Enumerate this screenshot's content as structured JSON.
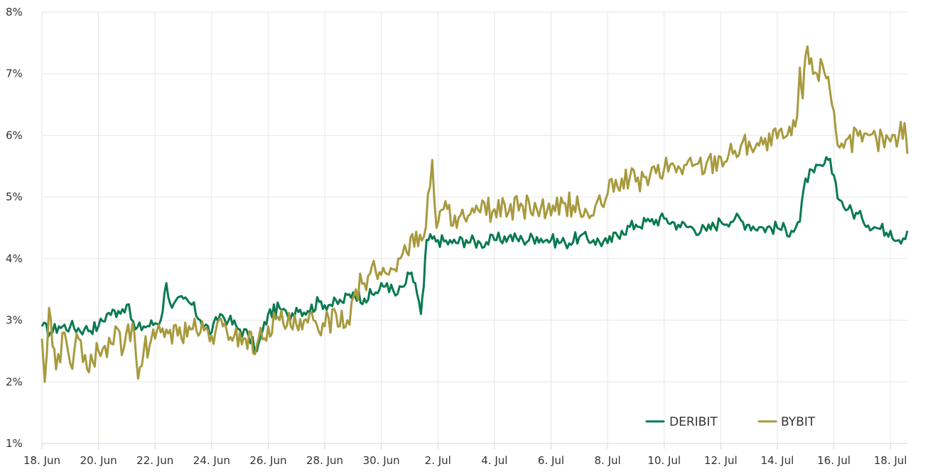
{
  "chart_data": {
    "type": "line",
    "title": "",
    "xlabel": "",
    "ylabel": "",
    "ylim": [
      1,
      8
    ],
    "xlim": [
      0,
      30.6
    ],
    "y_ticks": [
      1,
      2,
      3,
      4,
      5,
      6,
      7,
      8
    ],
    "y_tick_labels": [
      "1%",
      "2%",
      "3%",
      "4%",
      "5%",
      "6%",
      "7%",
      "8%"
    ],
    "x_ticks": [
      0,
      2,
      4,
      6,
      8,
      10,
      12,
      14,
      16,
      18,
      20,
      22,
      24,
      26,
      28,
      30
    ],
    "x_tick_labels": [
      "18. Jun",
      "20. Jun",
      "22. Jun",
      "24. Jun",
      "26. Jun",
      "28. Jun",
      "30. Jun",
      "2. Jul",
      "4. Jul",
      "6. Jul",
      "8. Jul",
      "10. Jul",
      "12. Jul",
      "14. Jul",
      "16. Jul",
      "18. Jul"
    ],
    "grid": true,
    "legend_position": "bottom-right",
    "series": [
      {
        "name": "DERIBIT",
        "color": "#0a7a50",
        "points": [
          [
            0,
            2.9
          ],
          [
            0.3,
            2.8
          ],
          [
            0.6,
            2.9
          ],
          [
            1.0,
            2.9
          ],
          [
            1.5,
            2.85
          ],
          [
            2.0,
            2.9
          ],
          [
            2.3,
            3.1
          ],
          [
            2.7,
            3.15
          ],
          [
            3.0,
            3.25
          ],
          [
            3.3,
            2.85
          ],
          [
            3.6,
            2.9
          ],
          [
            4.0,
            2.95
          ],
          [
            4.2,
            3.0
          ],
          [
            4.4,
            3.6
          ],
          [
            4.6,
            3.2
          ],
          [
            5.0,
            3.35
          ],
          [
            5.3,
            3.25
          ],
          [
            5.6,
            3.0
          ],
          [
            6.0,
            2.8
          ],
          [
            6.3,
            3.1
          ],
          [
            6.6,
            3.0
          ],
          [
            7.0,
            2.85
          ],
          [
            7.3,
            2.75
          ],
          [
            7.6,
            2.5
          ],
          [
            8.0,
            3.1
          ],
          [
            8.4,
            3.2
          ],
          [
            8.7,
            3.05
          ],
          [
            9.0,
            3.2
          ],
          [
            9.4,
            3.15
          ],
          [
            9.8,
            3.3
          ],
          [
            10.2,
            3.25
          ],
          [
            10.6,
            3.3
          ],
          [
            11.0,
            3.45
          ],
          [
            11.4,
            3.35
          ],
          [
            11.8,
            3.45
          ],
          [
            12.2,
            3.6
          ],
          [
            12.5,
            3.4
          ],
          [
            12.8,
            3.55
          ],
          [
            13.0,
            3.75
          ],
          [
            13.2,
            3.6
          ],
          [
            13.4,
            3.1
          ],
          [
            13.5,
            3.55
          ],
          [
            13.6,
            4.3
          ],
          [
            14.0,
            4.3
          ],
          [
            14.5,
            4.25
          ],
          [
            15.0,
            4.3
          ],
          [
            15.5,
            4.25
          ],
          [
            16.0,
            4.3
          ],
          [
            16.5,
            4.35
          ],
          [
            17.0,
            4.3
          ],
          [
            17.5,
            4.35
          ],
          [
            18.0,
            4.3
          ],
          [
            18.5,
            4.25
          ],
          [
            19.0,
            4.35
          ],
          [
            19.5,
            4.3
          ],
          [
            20.0,
            4.25
          ],
          [
            20.5,
            4.45
          ],
          [
            21.0,
            4.55
          ],
          [
            21.5,
            4.6
          ],
          [
            22.0,
            4.65
          ],
          [
            22.5,
            4.55
          ],
          [
            23.0,
            4.5
          ],
          [
            23.5,
            4.45
          ],
          [
            24.0,
            4.6
          ],
          [
            24.5,
            4.65
          ],
          [
            25.0,
            4.55
          ],
          [
            25.5,
            4.5
          ],
          [
            26.0,
            4.5
          ],
          [
            26.5,
            4.45
          ],
          [
            26.8,
            4.6
          ],
          [
            27.0,
            5.3
          ],
          [
            27.3,
            5.4
          ],
          [
            27.6,
            5.5
          ],
          [
            27.8,
            5.6
          ],
          [
            28.0,
            5.35
          ],
          [
            28.2,
            4.95
          ],
          [
            28.5,
            4.8
          ],
          [
            29.0,
            4.65
          ],
          [
            29.5,
            4.5
          ],
          [
            30.0,
            4.45
          ],
          [
            30.3,
            4.3
          ],
          [
            30.6,
            4.45
          ]
        ]
      },
      {
        "name": "BYBIT",
        "color": "#a79a3e",
        "points": [
          [
            0,
            2.7
          ],
          [
            0.1,
            2.0
          ],
          [
            0.25,
            3.2
          ],
          [
            0.5,
            2.2
          ],
          [
            0.8,
            2.8
          ],
          [
            1.0,
            2.3
          ],
          [
            1.3,
            2.7
          ],
          [
            1.6,
            2.2
          ],
          [
            2.0,
            2.5
          ],
          [
            2.3,
            2.4
          ],
          [
            2.6,
            2.9
          ],
          [
            2.9,
            2.55
          ],
          [
            3.2,
            2.95
          ],
          [
            3.4,
            2.05
          ],
          [
            3.6,
            2.5
          ],
          [
            4.0,
            2.7
          ],
          [
            4.4,
            2.85
          ],
          [
            4.8,
            2.75
          ],
          [
            5.2,
            2.9
          ],
          [
            5.6,
            2.8
          ],
          [
            6.0,
            2.75
          ],
          [
            6.4,
            2.9
          ],
          [
            6.8,
            2.75
          ],
          [
            7.2,
            2.7
          ],
          [
            7.6,
            2.6
          ],
          [
            8.0,
            2.9
          ],
          [
            8.4,
            3.0
          ],
          [
            8.8,
            2.9
          ],
          [
            9.2,
            2.85
          ],
          [
            9.6,
            3.0
          ],
          [
            10.0,
            2.9
          ],
          [
            10.4,
            3.1
          ],
          [
            10.8,
            3.0
          ],
          [
            11.1,
            3.5
          ],
          [
            11.4,
            3.6
          ],
          [
            11.8,
            3.8
          ],
          [
            12.2,
            3.75
          ],
          [
            12.6,
            4.0
          ],
          [
            12.9,
            4.1
          ],
          [
            13.1,
            4.4
          ],
          [
            13.3,
            4.2
          ],
          [
            13.5,
            4.35
          ],
          [
            13.8,
            5.6
          ],
          [
            13.95,
            4.5
          ],
          [
            14.2,
            4.8
          ],
          [
            14.6,
            4.7
          ],
          [
            15.0,
            4.6
          ],
          [
            15.5,
            4.75
          ],
          [
            16.0,
            4.8
          ],
          [
            16.5,
            4.75
          ],
          [
            17.0,
            4.85
          ],
          [
            17.5,
            4.8
          ],
          [
            18.0,
            4.7
          ],
          [
            18.5,
            4.9
          ],
          [
            19.0,
            4.8
          ],
          [
            19.5,
            4.7
          ],
          [
            20.0,
            5.05
          ],
          [
            20.5,
            5.3
          ],
          [
            21.0,
            5.25
          ],
          [
            21.5,
            5.35
          ],
          [
            22.0,
            5.45
          ],
          [
            22.5,
            5.5
          ],
          [
            23.0,
            5.5
          ],
          [
            23.5,
            5.55
          ],
          [
            24.0,
            5.65
          ],
          [
            24.5,
            5.75
          ],
          [
            25.0,
            5.9
          ],
          [
            25.5,
            5.85
          ],
          [
            26.0,
            5.95
          ],
          [
            26.5,
            6.0
          ],
          [
            26.7,
            6.3
          ],
          [
            26.8,
            7.1
          ],
          [
            26.9,
            6.6
          ],
          [
            27.0,
            7.3
          ],
          [
            27.2,
            7.25
          ],
          [
            27.4,
            7.0
          ],
          [
            27.6,
            7.15
          ],
          [
            27.8,
            6.95
          ],
          [
            28.0,
            6.4
          ],
          [
            28.2,
            5.8
          ],
          [
            28.5,
            5.95
          ],
          [
            29.0,
            5.9
          ],
          [
            29.5,
            5.95
          ],
          [
            30.0,
            5.9
          ],
          [
            30.3,
            6.0
          ],
          [
            30.5,
            6.2
          ],
          [
            30.6,
            5.7
          ]
        ]
      }
    ]
  }
}
